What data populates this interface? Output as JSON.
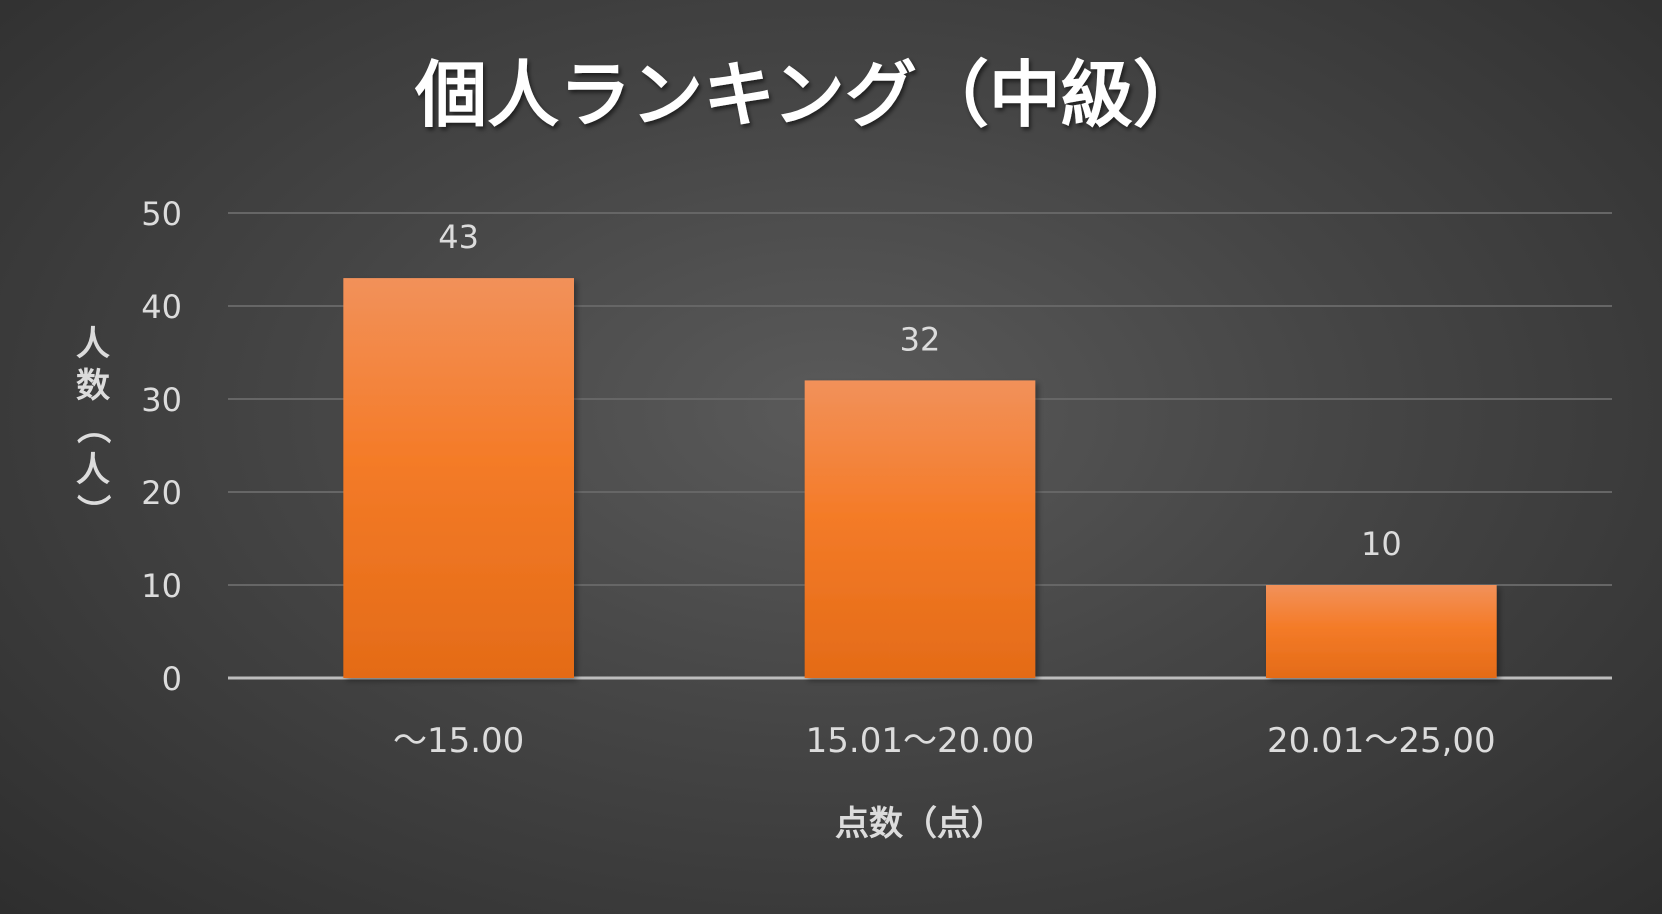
{
  "chart_data": {
    "type": "bar",
    "title": "個人ランキング（中級）",
    "xlabel": "点数（点）",
    "ylabel": "人数（人）",
    "categories": [
      "～15.00",
      "15.01～20.00",
      "20.01～25,00"
    ],
    "values": [
      43,
      32,
      10
    ],
    "data_labels": [
      "43",
      "32",
      "10"
    ],
    "ylim": [
      0,
      50
    ],
    "yticks": [
      0,
      10,
      20,
      30,
      40,
      50
    ],
    "grid": true,
    "legend": "none",
    "colors": {
      "bar_top": "#f2915a",
      "bar_mid": "#f47b28",
      "bar_bottom": "#e46b17",
      "gridline": "#666666",
      "baseline": "#bdbdbd"
    }
  }
}
